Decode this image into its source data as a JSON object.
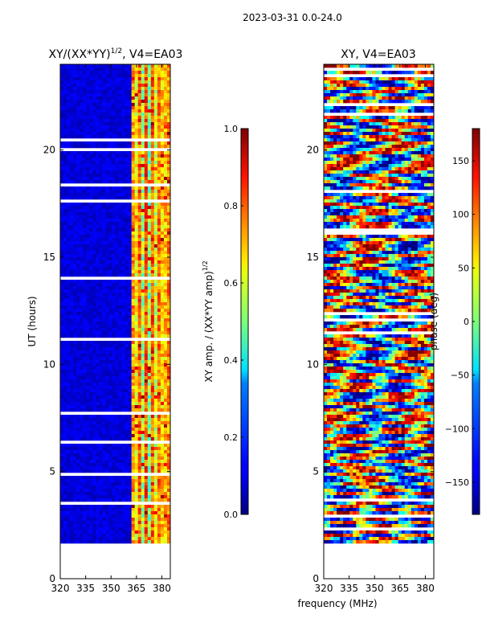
{
  "figure_title": "2023-03-31 0.0-24.0",
  "chart_data": [
    {
      "type": "heatmap",
      "panel": "left",
      "title": "XY/(XX*YY)",
      "title_exponent": "1/2",
      "title_suffix": ", V4=EA03",
      "xlabel": "",
      "ylabel": "UT (hours)",
      "xlim": [
        320,
        385
      ],
      "ylim": [
        0,
        24
      ],
      "xticks": [
        320,
        335,
        350,
        365,
        380
      ],
      "yticks": [
        0,
        5,
        10,
        15,
        20
      ],
      "data_start_hour": 1.7,
      "colorbar": {
        "label": "XY amp. / (XX*YY amp)",
        "label_exponent": "1/2",
        "range": [
          0.0,
          1.0
        ],
        "ticks": [
          "0.0",
          "0.2",
          "0.4",
          "0.6",
          "0.8",
          "1.0"
        ],
        "colormap": "jet"
      }
    },
    {
      "type": "heatmap",
      "panel": "right",
      "title": "XY, V4=EA03",
      "xlabel": "frequency (MHz)",
      "ylabel": "",
      "xlim": [
        320,
        385
      ],
      "ylim": [
        0,
        24
      ],
      "xticks": [
        320,
        335,
        350,
        365,
        380
      ],
      "yticks": [
        0,
        5,
        10,
        15,
        20
      ],
      "data_start_hour": 1.7,
      "colorbar": {
        "label": "phase (deg)",
        "range": [
          -180,
          180
        ],
        "ticks": [
          "−150",
          "−100",
          "−50",
          "0",
          "50",
          "100",
          "150"
        ],
        "colormap": "jet"
      }
    }
  ]
}
